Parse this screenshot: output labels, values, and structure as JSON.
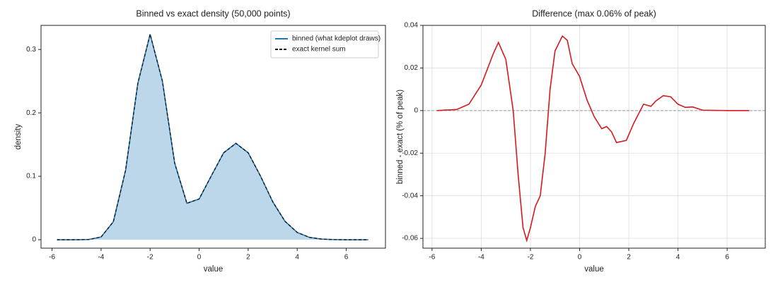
{
  "chart_data": [
    {
      "type": "area",
      "title": "Binned vs exact density (50,000 points)",
      "x_label": "value",
      "y_label": "density",
      "x": [
        -5.8,
        -5.5,
        -5,
        -4.5,
        -4,
        -3.5,
        -3,
        -2.5,
        -2,
        -1.5,
        -1,
        -0.5,
        0,
        0.5,
        1,
        1.5,
        2,
        2.5,
        3,
        3.5,
        4,
        4.5,
        5,
        5.5,
        6,
        6.5,
        6.9
      ],
      "series": [
        {
          "name": "binned (what kdeplot draws)",
          "color": "#1f77b4",
          "dash": false,
          "values": [
            0,
            0,
            0,
            0.0004,
            0.0043,
            0.0284,
            0.1096,
            0.2468,
            0.324,
            0.2503,
            0.1211,
            0.0575,
            0.0643,
            0.101,
            0.1371,
            0.152,
            0.1371,
            0.1006,
            0.06,
            0.0291,
            0.0115,
            0.0037,
            0.001,
            0.0002,
            0,
            0,
            0
          ]
        },
        {
          "name": "exact kernel sum",
          "color": "#111111",
          "dash": true,
          "values": [
            0,
            0,
            0,
            0.0004,
            0.0043,
            0.0284,
            0.1096,
            0.2468,
            0.324,
            0.2503,
            0.1211,
            0.0575,
            0.0643,
            0.101,
            0.1371,
            0.152,
            0.1371,
            0.1006,
            0.06,
            0.0291,
            0.0115,
            0.0037,
            0.001,
            0.0002,
            0,
            0,
            0
          ]
        }
      ],
      "fill_color": "#bcd6ea",
      "xlim": [
        -6.45,
        7.6
      ],
      "xticks": [
        -6,
        -4,
        -2,
        0,
        2,
        4,
        6
      ],
      "ylim": [
        -0.0133,
        0.338
      ],
      "yticks": [
        0,
        0.1,
        0.2,
        0.3
      ],
      "grid": false,
      "legend": "upper right"
    },
    {
      "type": "line",
      "title": "Difference (max 0.06% of peak)",
      "x_label": "value",
      "y_label": "binned - exact  (% of peak)",
      "x": [
        -5.8,
        -5,
        -4.5,
        -4,
        -3.5,
        -3.3,
        -3,
        -2.7,
        -2.5,
        -2.3,
        -2.15,
        -2,
        -1.8,
        -1.6,
        -1.4,
        -1.2,
        -1,
        -0.7,
        -0.5,
        -0.3,
        0,
        0.3,
        0.6,
        0.9,
        1.1,
        1.3,
        1.5,
        1.9,
        2.2,
        2.6,
        2.9,
        3.1,
        3.4,
        3.7,
        4,
        4.3,
        4.6,
        5,
        5.5,
        6,
        6.9
      ],
      "series": [
        {
          "name": "difference",
          "color": "#d7191c",
          "dash": false,
          "values": [
            0,
            0.0005,
            0.003,
            0.012,
            0.027,
            0.032,
            0.024,
            0,
            -0.03,
            -0.055,
            -0.061,
            -0.055,
            -0.045,
            -0.04,
            -0.02,
            0.01,
            0.028,
            0.035,
            0.033,
            0.022,
            0.016,
            0.005,
            -0.003,
            -0.0085,
            -0.0075,
            -0.01,
            -0.015,
            -0.014,
            -0.006,
            0.003,
            0.002,
            0.0045,
            0.007,
            0.0065,
            0.003,
            0.0015,
            0.0017,
            0.0002,
            0.0001,
            0,
            0
          ]
        }
      ],
      "reference_line": 0,
      "xlim": [
        -6.37,
        7.55
      ],
      "xticks": [
        -6,
        -4,
        -2,
        0,
        2,
        4,
        6
      ],
      "ylim": [
        -0.0646,
        0.04
      ],
      "yticks": [
        -0.06,
        -0.04,
        -0.02,
        0,
        0.02,
        0.04
      ],
      "grid": true
    }
  ]
}
